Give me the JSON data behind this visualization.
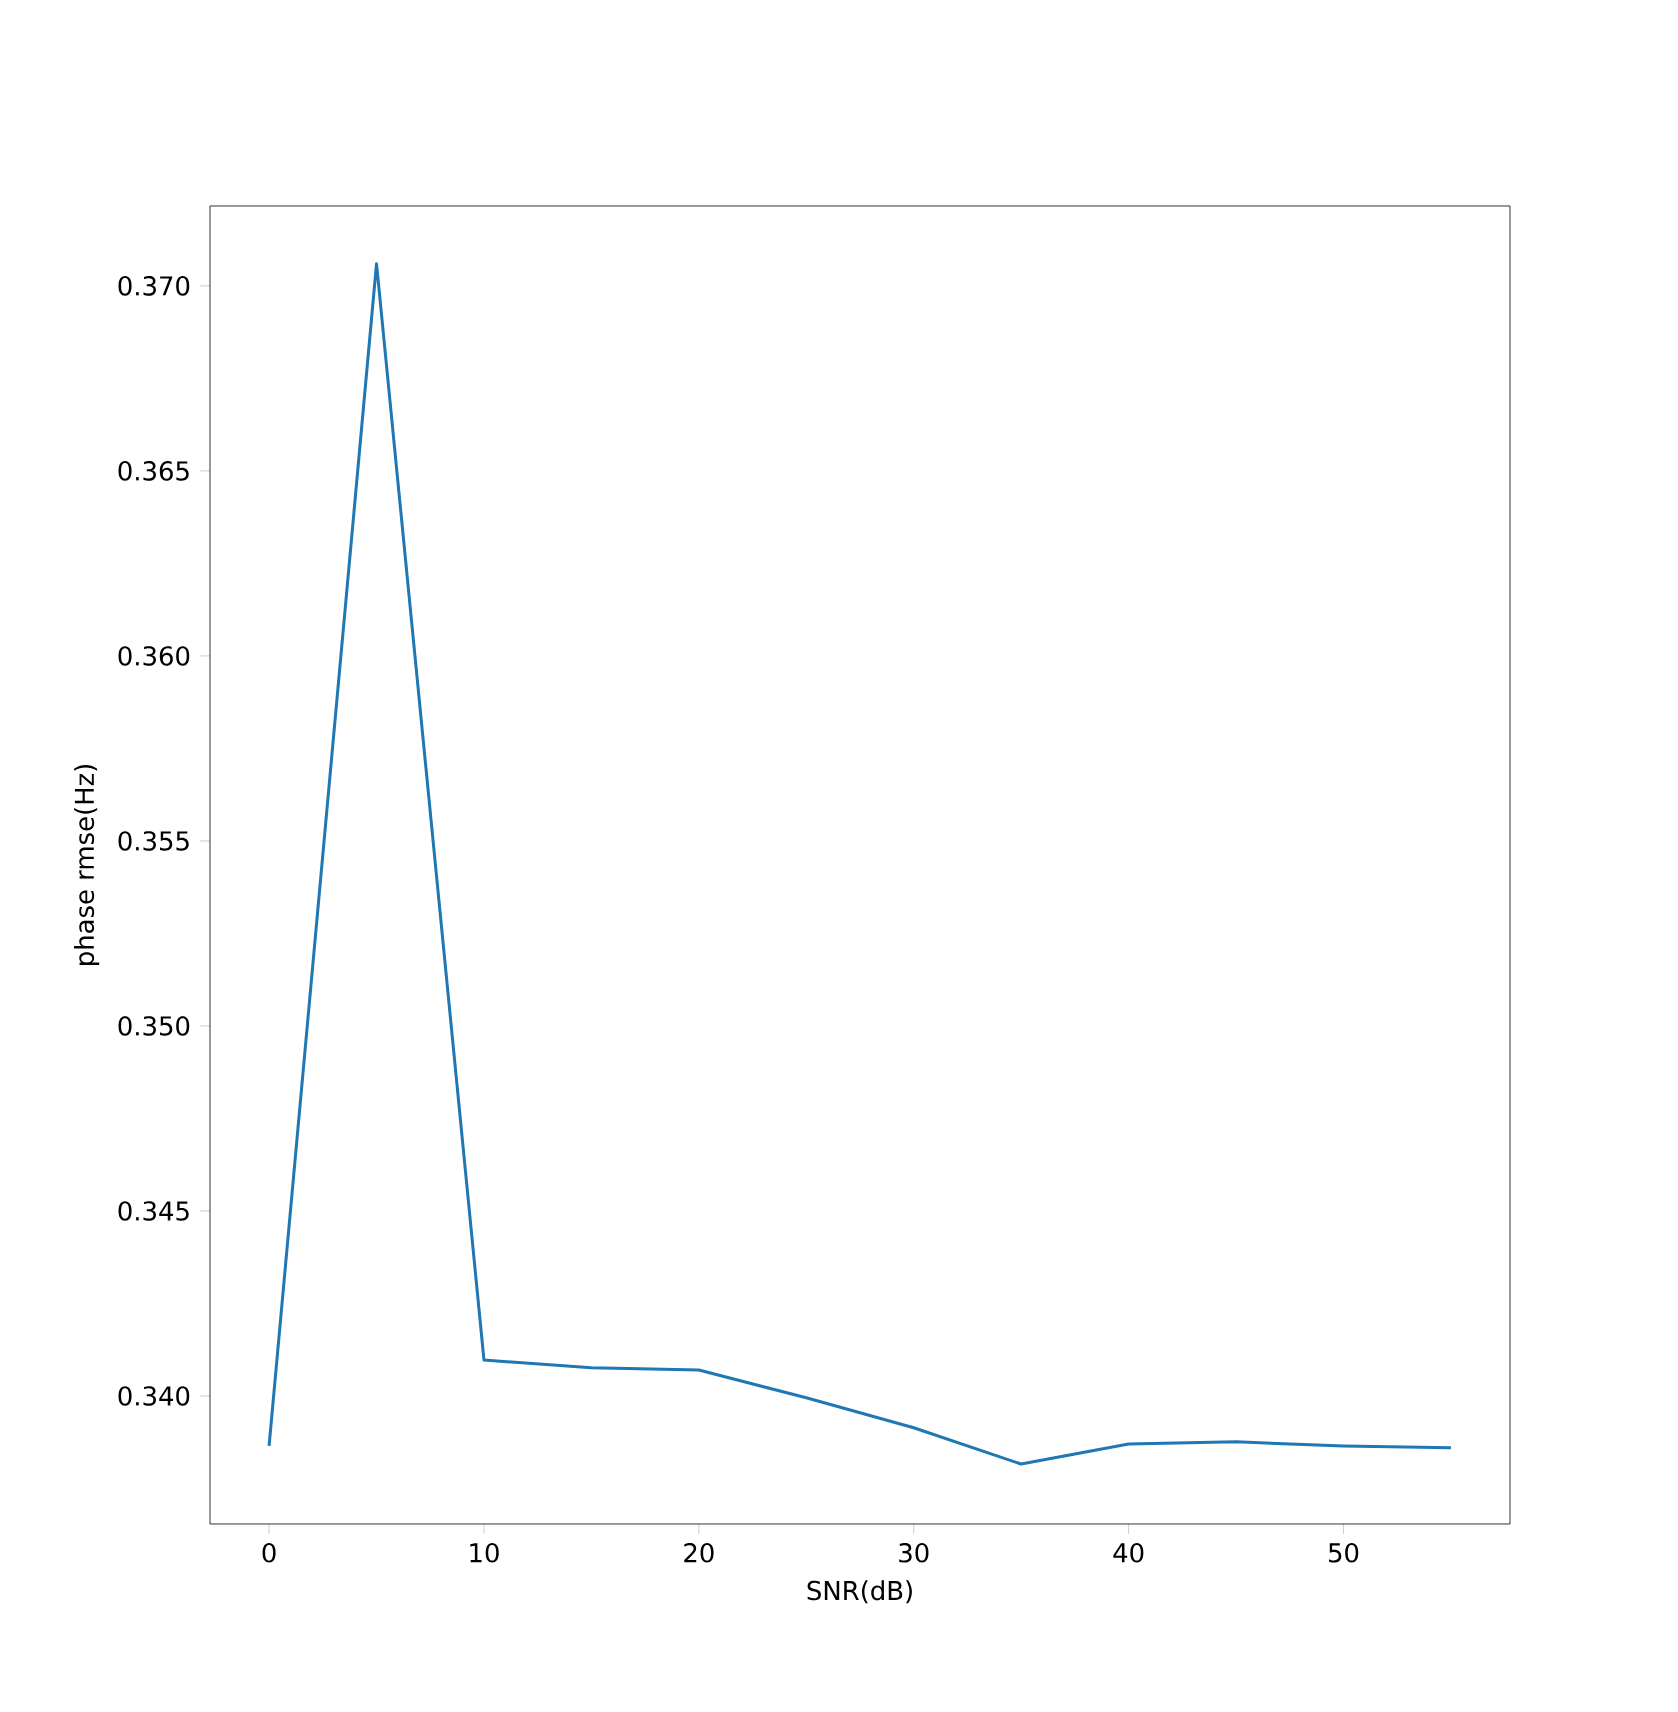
{
  "chart_data": {
    "type": "line",
    "xlabel": "SNR(dB)",
    "ylabel": "phase rmse(Hz)",
    "x": [
      0,
      5,
      10,
      15,
      20,
      25,
      30,
      35,
      40,
      45,
      50,
      55
    ],
    "series": [
      {
        "color": "#1f77b4",
        "values": [
          0.33865,
          0.3706,
          0.34097,
          0.34076,
          0.3407,
          0.33995,
          0.33914,
          0.33816,
          0.3387,
          0.33876,
          0.33865,
          0.3386
        ]
      }
    ],
    "xlim": [
      -2.75,
      57.75
    ],
    "ylim": [
      0.33654,
      0.37216
    ],
    "xticks": [
      0,
      10,
      20,
      30,
      40,
      50
    ],
    "yticks": [
      {
        "value": 0.34,
        "label": "0.340"
      },
      {
        "value": 0.345,
        "label": "0.345"
      },
      {
        "value": 0.35,
        "label": "0.350"
      },
      {
        "value": 0.355,
        "label": "0.355"
      },
      {
        "value": 0.36,
        "label": "0.360"
      },
      {
        "value": 0.365,
        "label": "0.365"
      },
      {
        "value": 0.37,
        "label": "0.370"
      }
    ],
    "grid": false,
    "marker": "none",
    "line_style": "solid"
  }
}
